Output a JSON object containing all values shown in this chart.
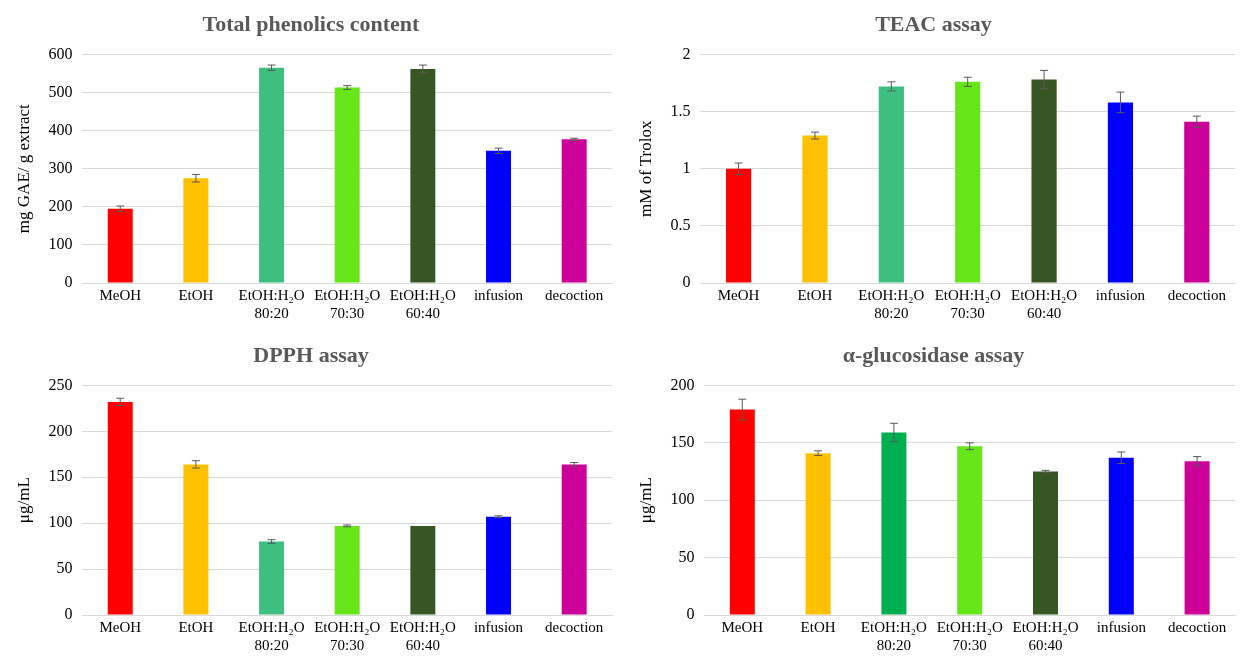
{
  "chart_data": [
    {
      "type": "bar",
      "title": "Total phenolics content",
      "ylabel": "mg GAE/ g extract",
      "categories": [
        "MeOH",
        "EtOH",
        "EtOH:H₂O\n80:20",
        "EtOH:H₂O\n70:30",
        "EtOH:H₂O\n60:40",
        "infusion",
        "decoction"
      ],
      "values": [
        195,
        275,
        565,
        513,
        562,
        347,
        377
      ],
      "errors": [
        7,
        10,
        7,
        5,
        10,
        7,
        3
      ],
      "colors": [
        "#ff0000",
        "#ffc000",
        "#3dbf7f",
        "#66e619",
        "#375623",
        "#0000ff",
        "#cc0099"
      ],
      "ylim": [
        0,
        600
      ],
      "yticks": [
        0,
        100,
        200,
        300,
        400,
        500,
        600
      ],
      "grid": "y"
    },
    {
      "type": "bar",
      "title": "TEAC assay",
      "ylabel": "mM of Trolox",
      "categories": [
        "MeOH",
        "EtOH",
        "EtOH:H₂O\n80:20",
        "EtOH:H₂O\n70:30",
        "EtOH:H₂O\n60:40",
        "infusion",
        "decoction"
      ],
      "values": [
        1.0,
        1.29,
        1.72,
        1.76,
        1.78,
        1.58,
        1.41
      ],
      "errors": [
        0.05,
        0.03,
        0.04,
        0.04,
        0.08,
        0.09,
        0.05
      ],
      "colors": [
        "#ff0000",
        "#ffc000",
        "#3dbf7f",
        "#66e619",
        "#375623",
        "#0000ff",
        "#cc0099"
      ],
      "ylim": [
        0,
        2
      ],
      "yticks": [
        0,
        0.5,
        1,
        1.5,
        2
      ],
      "grid": "y"
    },
    {
      "type": "bar",
      "title": "DPPH assay",
      "ylabel": "μg/mL",
      "categories": [
        "MeOH",
        "EtOH",
        "EtOH:H₂O\n80:20",
        "EtOH:H₂O\n70:30",
        "EtOH:H₂O\n60:40",
        "infusion",
        "decoction"
      ],
      "values": [
        232,
        164,
        80,
        97,
        97,
        107,
        164
      ],
      "errors": [
        4,
        4,
        2,
        1,
        null,
        1,
        2
      ],
      "colors": [
        "#ff0000",
        "#ffc000",
        "#3dbf7f",
        "#66e619",
        "#375623",
        "#0000ff",
        "#cc0099"
      ],
      "ylim": [
        0,
        250
      ],
      "yticks": [
        0,
        50,
        100,
        150,
        200,
        250
      ],
      "grid": "y"
    },
    {
      "type": "bar",
      "title": "α-glucosidase assay",
      "ylabel": "μg/mL",
      "categories": [
        "MeOH",
        "EtOH",
        "EtOH:H₂O\n80:20",
        "EtOH:H₂O\n70:30",
        "EtOH:H₂O\n60:40",
        "infusion",
        "decoction"
      ],
      "values": [
        179,
        141,
        159,
        147,
        125,
        137,
        134
      ],
      "errors": [
        9,
        2,
        8,
        3,
        1,
        5,
        4
      ],
      "colors": [
        "#ff0000",
        "#ffc000",
        "#00b050",
        "#66e619",
        "#375623",
        "#0000ff",
        "#cc0099"
      ],
      "ylim": [
        0,
        200
      ],
      "yticks": [
        0,
        50,
        100,
        150,
        200
      ],
      "grid": "y"
    }
  ]
}
